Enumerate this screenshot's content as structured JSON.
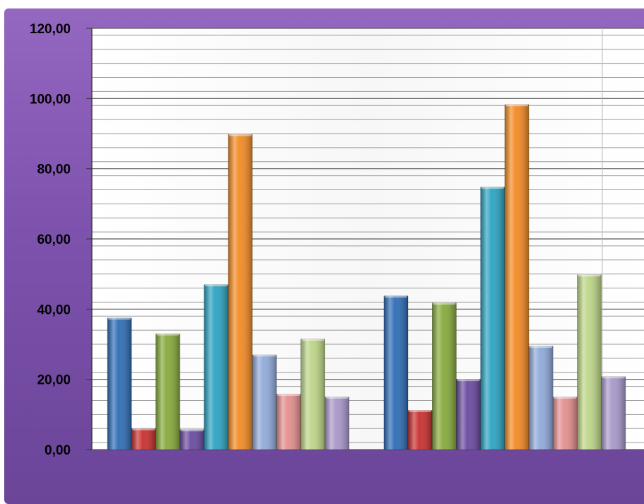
{
  "chart_data": {
    "type": "bar",
    "title": "",
    "xlabel": "",
    "ylabel": "",
    "ylim": [
      0,
      120
    ],
    "y_ticks": [
      "0,00",
      "20,00",
      "40,00",
      "60,00",
      "80,00",
      "100,00",
      "120,00"
    ],
    "grid": true,
    "legend": "none",
    "group_count": 2,
    "series": [
      {
        "color": "#2e6cb5",
        "values": [
          37.5,
          43.8
        ]
      },
      {
        "color": "#c8302f",
        "values": [
          6.0,
          11.2
        ]
      },
      {
        "color": "#86a93b",
        "values": [
          33.0,
          41.8
        ]
      },
      {
        "color": "#6a4aa0",
        "values": [
          5.7,
          20.0
        ]
      },
      {
        "color": "#2aa3c2",
        "values": [
          47.0,
          74.8
        ]
      },
      {
        "color": "#f28a22",
        "values": [
          89.8,
          98.3
        ]
      },
      {
        "color": "#8fa9d9",
        "values": [
          27.0,
          29.5
        ]
      },
      {
        "color": "#e48f8e",
        "values": [
          15.8,
          15.0
        ]
      },
      {
        "color": "#bcd586",
        "values": [
          31.5,
          49.8
        ]
      },
      {
        "color": "#a897c9",
        "values": [
          15.0,
          20.8
        ]
      }
    ]
  }
}
